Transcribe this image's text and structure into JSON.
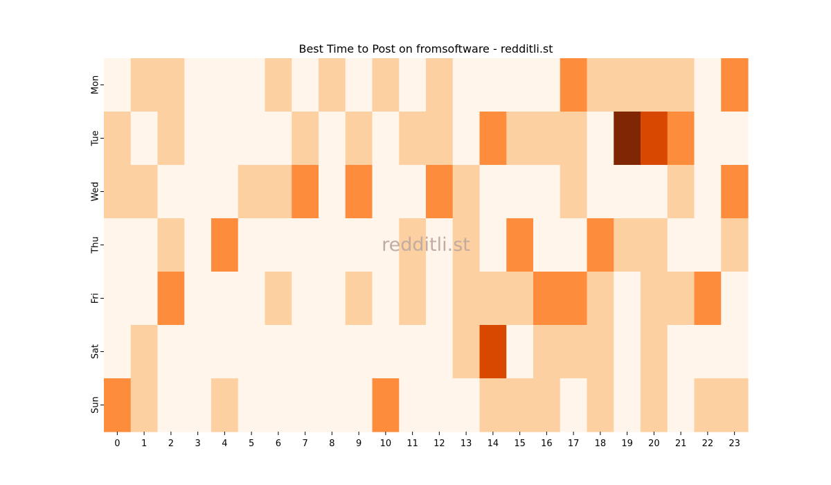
{
  "chart_data": {
    "type": "heatmap",
    "title": "Best Time to Post on fromsoftware - redditli.st",
    "watermark": "redditli.st",
    "x_categories": [
      "0",
      "1",
      "2",
      "3",
      "4",
      "5",
      "6",
      "7",
      "8",
      "9",
      "10",
      "11",
      "12",
      "13",
      "14",
      "15",
      "16",
      "17",
      "18",
      "19",
      "20",
      "21",
      "22",
      "23"
    ],
    "y_categories": [
      "Mon",
      "Tue",
      "Wed",
      "Thu",
      "Fri",
      "Sat",
      "Sun"
    ],
    "values": [
      [
        0,
        1,
        1,
        0,
        0,
        0,
        1,
        0,
        1,
        0,
        1,
        0,
        1,
        0,
        0,
        0,
        0,
        2,
        1,
        1,
        1,
        1,
        0,
        2
      ],
      [
        1,
        0,
        1,
        0,
        0,
        0,
        0,
        1,
        0,
        1,
        0,
        1,
        1,
        0,
        2,
        1,
        1,
        1,
        0,
        4,
        3,
        2,
        0,
        0
      ],
      [
        1,
        1,
        0,
        0,
        0,
        1,
        1,
        2,
        0,
        2,
        0,
        0,
        2,
        1,
        0,
        0,
        0,
        1,
        0,
        0,
        0,
        1,
        0,
        2
      ],
      [
        0,
        0,
        1,
        0,
        2,
        0,
        0,
        0,
        0,
        0,
        0,
        1,
        0,
        1,
        0,
        2,
        0,
        0,
        2,
        1,
        1,
        0,
        0,
        1
      ],
      [
        0,
        0,
        2,
        0,
        0,
        0,
        1,
        0,
        0,
        1,
        0,
        1,
        0,
        1,
        1,
        1,
        2,
        2,
        1,
        0,
        1,
        1,
        2,
        0
      ],
      [
        0,
        1,
        0,
        0,
        0,
        0,
        0,
        0,
        0,
        0,
        0,
        0,
        0,
        1,
        3,
        0,
        1,
        1,
        1,
        0,
        1,
        0,
        0,
        0
      ],
      [
        2,
        1,
        0,
        0,
        1,
        0,
        0,
        0,
        0,
        0,
        2,
        0,
        0,
        0,
        1,
        1,
        1,
        0,
        1,
        0,
        1,
        0,
        1,
        1
      ]
    ],
    "value_range": [
      0,
      4
    ],
    "colors": {
      "0": "#fff5eb",
      "1": "#fdd0a2",
      "2": "#fd8d3c",
      "3": "#d94801",
      "4": "#7f2704"
    },
    "colormap": "Oranges",
    "grid": false,
    "legend": "none"
  }
}
